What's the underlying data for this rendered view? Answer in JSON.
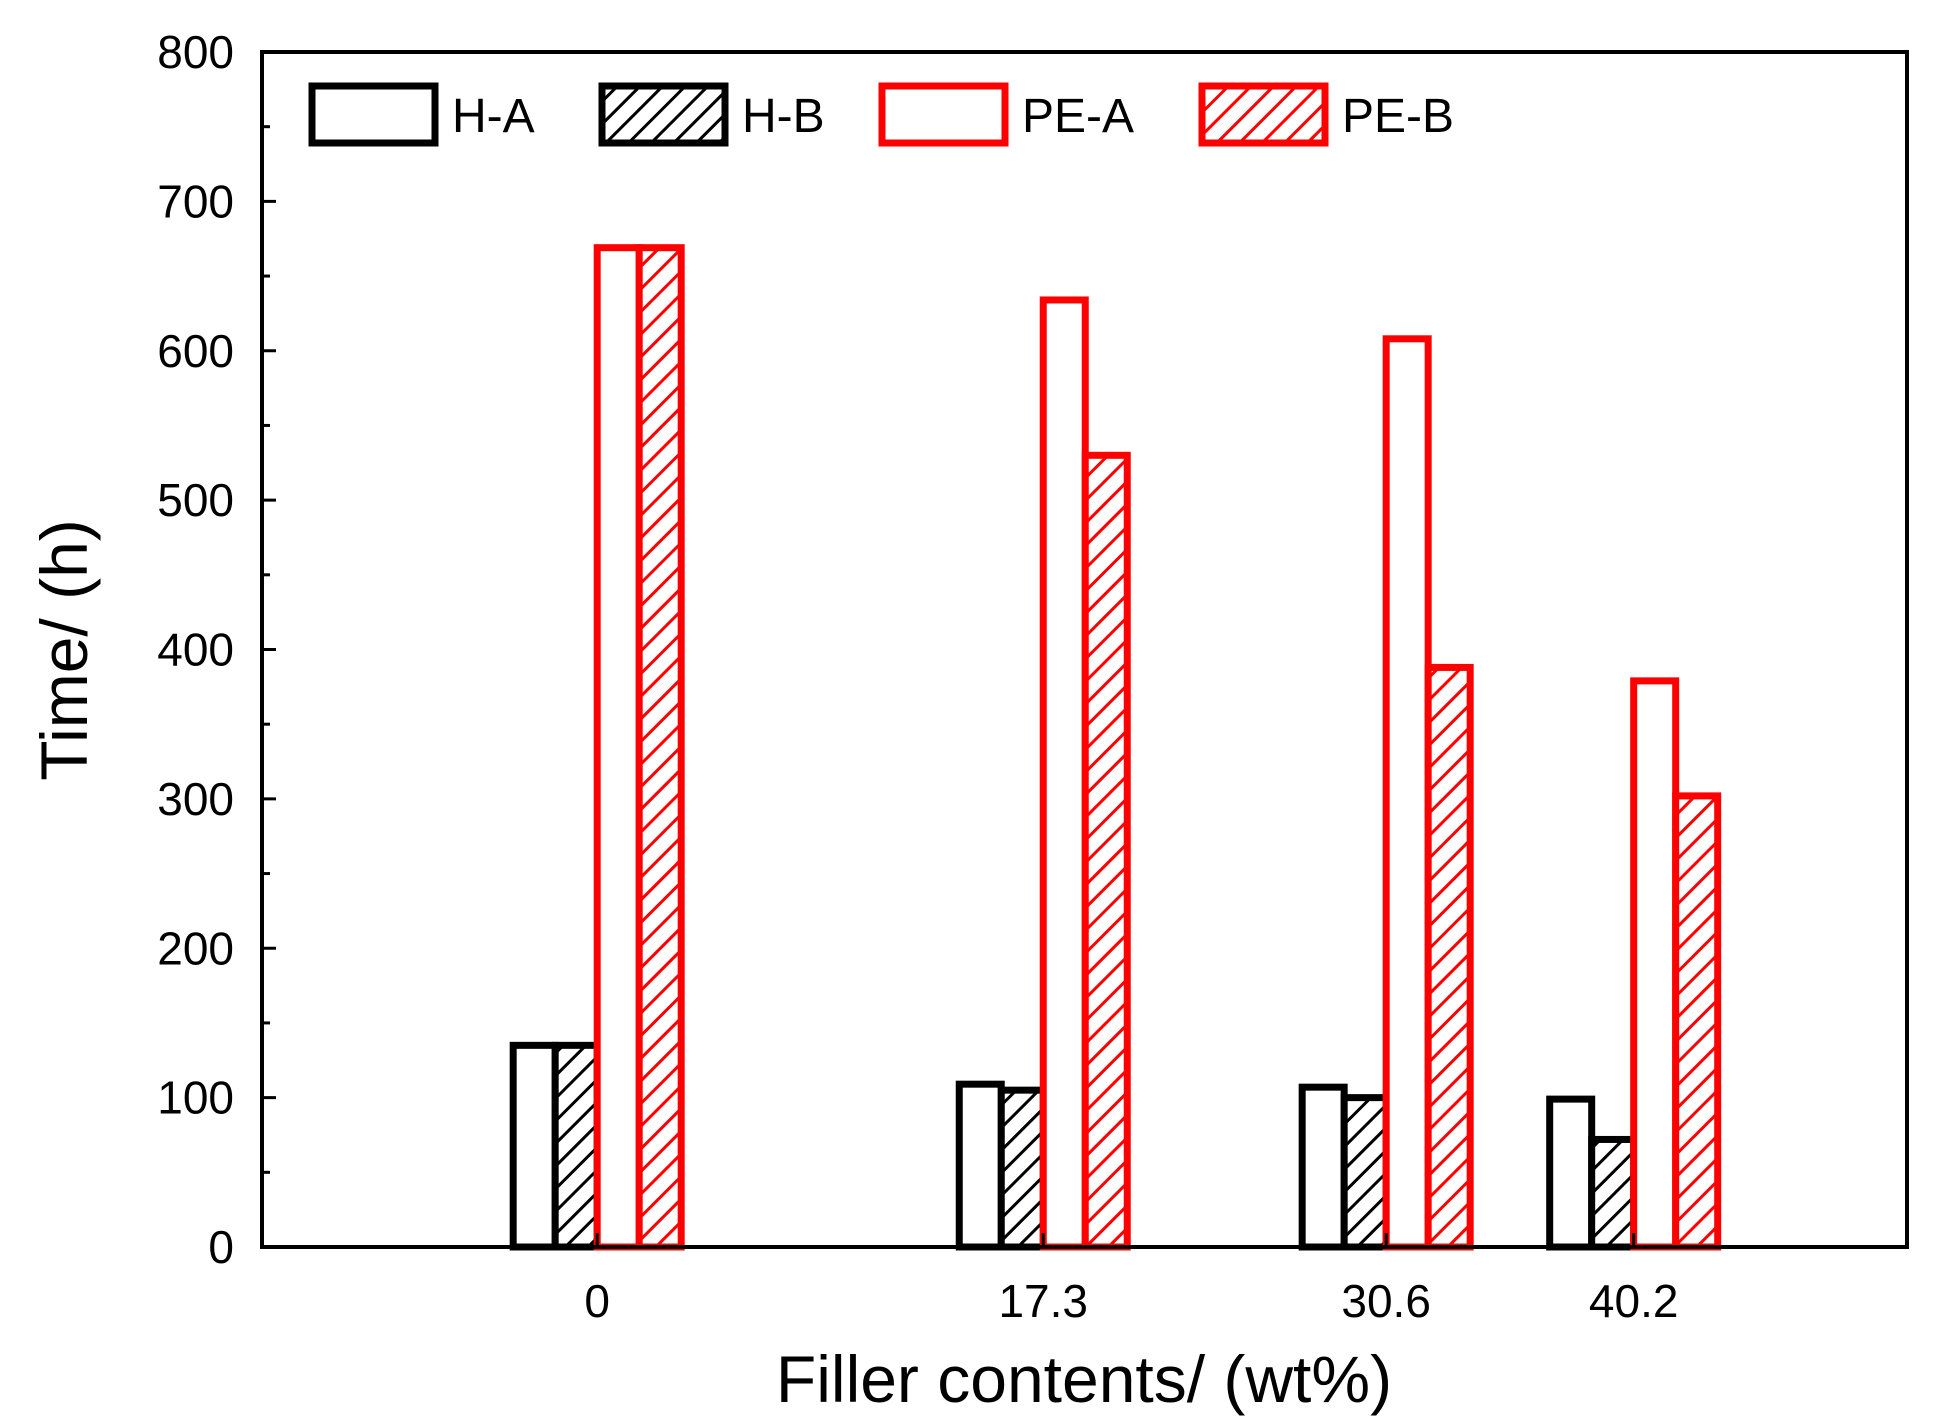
{
  "chart_data": {
    "type": "bar",
    "title": "",
    "xlabel": "Filler contents/ (wt%)",
    "ylabel": "Time/ (h)",
    "ylim": [
      0,
      800
    ],
    "yticks": [
      0,
      100,
      200,
      300,
      400,
      500,
      600,
      700,
      800
    ],
    "categories": [
      "0",
      "17.3",
      "30.6",
      "40.2"
    ],
    "category_values": [
      0,
      17.3,
      30.6,
      40.2
    ],
    "x_domain": [
      -13,
      50.8
    ],
    "legend_position": "top-left",
    "series": [
      {
        "name": "H-A",
        "color": "#000000",
        "hatch": false,
        "values": [
          135,
          109,
          107,
          99
        ]
      },
      {
        "name": "H-B",
        "color": "#000000",
        "hatch": true,
        "values": [
          135,
          105,
          100,
          72
        ]
      },
      {
        "name": "PE-A",
        "color": "#ff0000",
        "hatch": false,
        "values": [
          669,
          634,
          608,
          379
        ]
      },
      {
        "name": "PE-B",
        "color": "#ff0000",
        "hatch": true,
        "values": [
          669,
          530,
          388,
          302
        ]
      }
    ]
  }
}
